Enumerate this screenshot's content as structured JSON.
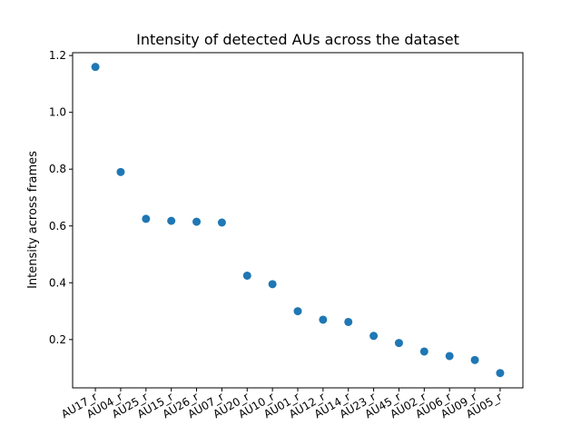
{
  "chart_data": {
    "type": "scatter",
    "title": "Intensity of detected AUs across the dataset",
    "xlabel": "",
    "ylabel": "Intensity across frames",
    "categories": [
      "AU17_r",
      "AU04_r",
      "AU25_r",
      "AU15_r",
      "AU26_r",
      "AU07_r",
      "AU20_r",
      "AU10_r",
      "AU01_r",
      "AU12_r",
      "AU14_r",
      "AU23_r",
      "AU45_r",
      "AU02_r",
      "AU06_r",
      "AU09_r",
      "AU05_r"
    ],
    "values": [
      1.16,
      0.79,
      0.625,
      0.618,
      0.615,
      0.612,
      0.425,
      0.395,
      0.3,
      0.27,
      0.262,
      0.213,
      0.188,
      0.158,
      0.142,
      0.128,
      0.082
    ],
    "ylim": [
      0.03,
      1.21
    ],
    "yticks": [
      "0.2",
      "0.4",
      "0.6",
      "0.8",
      "1.0",
      "1.2"
    ],
    "grid": false,
    "marker_color": "#1f77b4"
  }
}
